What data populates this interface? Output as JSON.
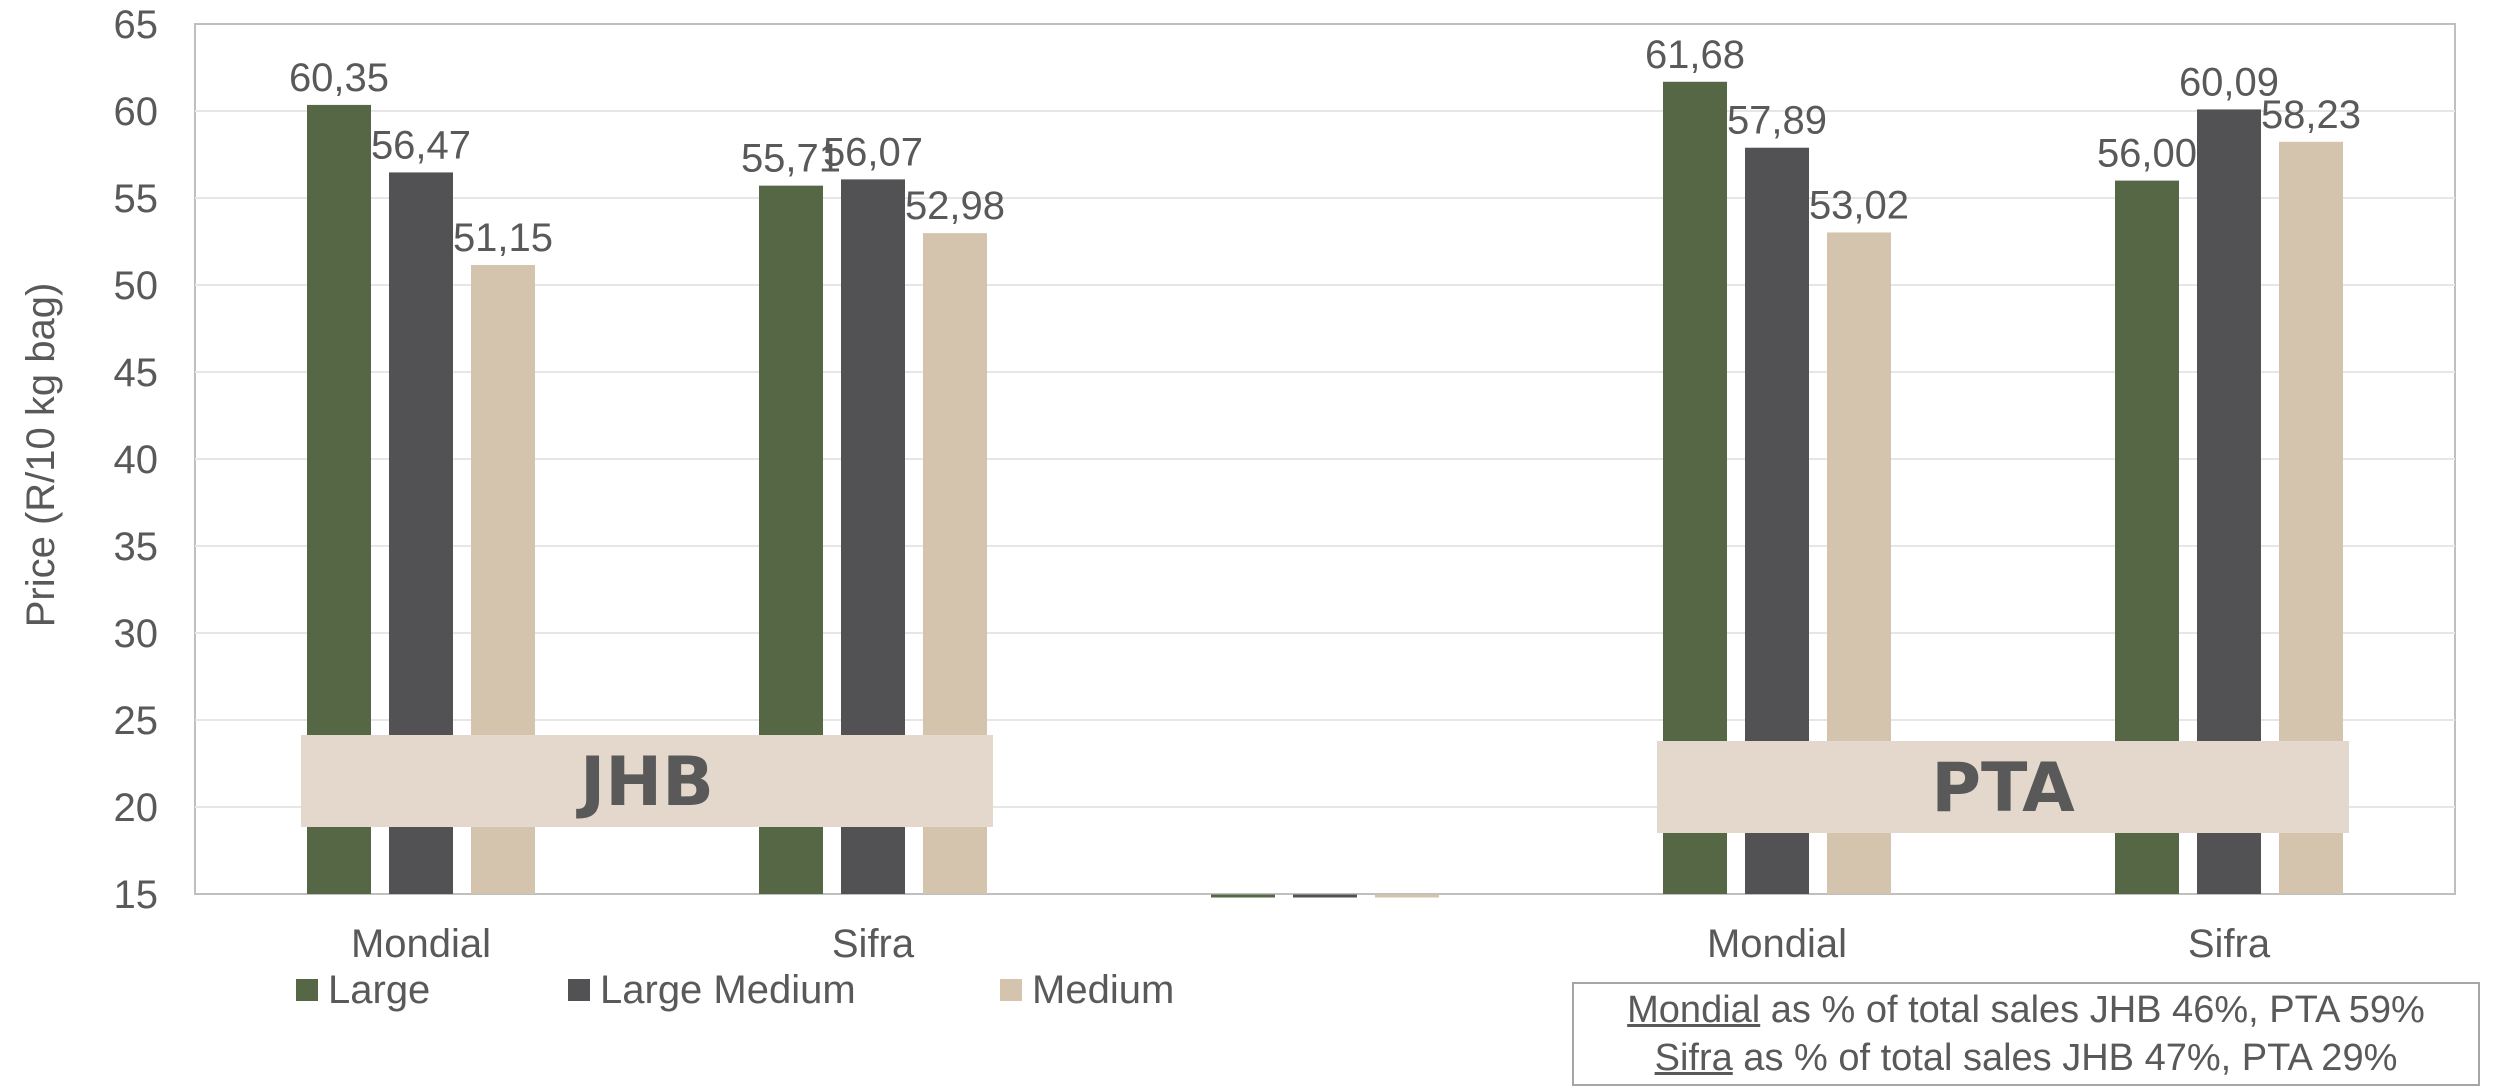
{
  "chart_data": {
    "type": "bar",
    "ylabel": "Price (R/10 kg bag)",
    "ylim": [
      15,
      65
    ],
    "yticks": [
      15,
      20,
      25,
      30,
      35,
      40,
      45,
      50,
      55,
      60,
      65
    ],
    "grid": true,
    "categories": [
      "Mondial",
      "Sifra",
      "",
      "Mondial",
      "Sifra"
    ],
    "series": [
      {
        "name": "Large",
        "color": "#556745",
        "values": [
          60.35,
          55.71,
          null,
          61.68,
          56.0
        ],
        "labels": [
          "60,35",
          "55,71",
          "",
          "61,68",
          "56,00"
        ]
      },
      {
        "name": "Large Medium",
        "color": "#525254",
        "values": [
          56.47,
          56.07,
          null,
          57.89,
          60.09
        ],
        "labels": [
          "56,47",
          "56,07",
          "",
          "57,89",
          "60,09"
        ]
      },
      {
        "name": "Medium",
        "color": "#d4c3ad",
        "values": [
          51.15,
          52.98,
          null,
          53.02,
          58.23
        ],
        "labels": [
          "51,15",
          "52,98",
          "",
          "53,02",
          "58,23"
        ]
      }
    ],
    "regions": [
      "JHB",
      "PTA"
    ],
    "legend_position": "bottom-left"
  },
  "note": {
    "line1_key": "Mondial",
    "line1_rest": " as % of total sales JHB 46%, PTA 59%",
    "line2_key": "Sifra",
    "line2_rest": " as % of total sales JHB 47%, PTA 29%"
  }
}
